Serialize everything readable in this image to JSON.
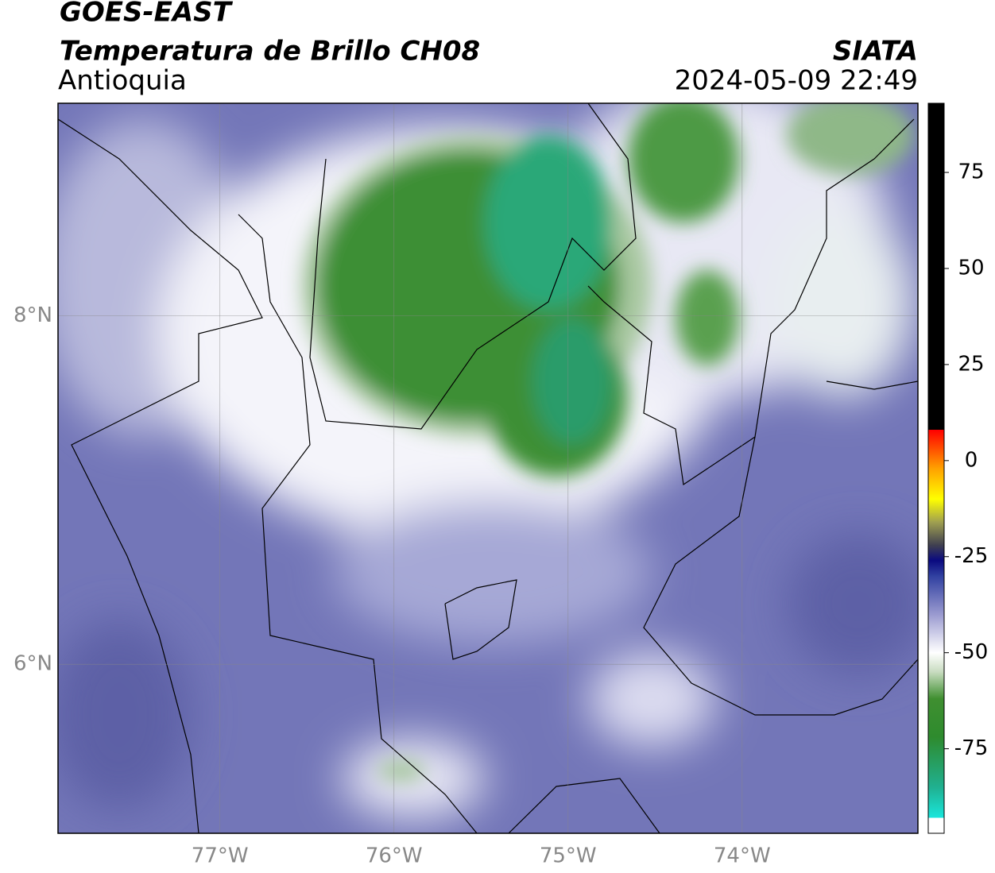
{
  "header": {
    "title": "GOES-EAST",
    "subtitle": "Temperatura de Brillo CH08",
    "region": "Antioquia",
    "source": "SIATA",
    "datetime": "2024-05-09 22:49"
  },
  "map": {
    "xlim": [
      -77.93,
      -72.99
    ],
    "ylim": [
      5.03,
      9.22
    ],
    "xticks": [
      {
        "value": -77,
        "label": "77°W"
      },
      {
        "value": -76,
        "label": "76°W"
      },
      {
        "value": -75,
        "label": "75°W"
      },
      {
        "value": -74,
        "label": "74°W"
      }
    ],
    "yticks": [
      {
        "value": 8,
        "label": "8°N"
      },
      {
        "value": 6,
        "label": "6°N"
      }
    ],
    "grid": true
  },
  "colorbar": {
    "lim": [
      -97,
      93
    ],
    "ticks": [
      75,
      50,
      25,
      0,
      -25,
      -50,
      -75
    ],
    "stops": [
      [
        -97,
        "#ffffff"
      ],
      [
        -93,
        "#ffffff"
      ],
      [
        -93,
        "#19e6dc"
      ],
      [
        -85,
        "#20b090"
      ],
      [
        -72,
        "#2e8b2e"
      ],
      [
        -62,
        "#3f8f30"
      ],
      [
        -55,
        "#c8dcc0"
      ],
      [
        -50,
        "#ffffff"
      ],
      [
        -40,
        "#9a9ad0"
      ],
      [
        -30,
        "#3040a0"
      ],
      [
        -26,
        "#0a0a80"
      ],
      [
        -22,
        "#404050"
      ],
      [
        -16,
        "#a0a050"
      ],
      [
        -10,
        "#ffff00"
      ],
      [
        -2,
        "#ffa000"
      ],
      [
        6,
        "#ff2000"
      ],
      [
        8,
        "#ff0000"
      ],
      [
        8,
        "#000000"
      ],
      [
        93,
        "#000000"
      ]
    ]
  }
}
